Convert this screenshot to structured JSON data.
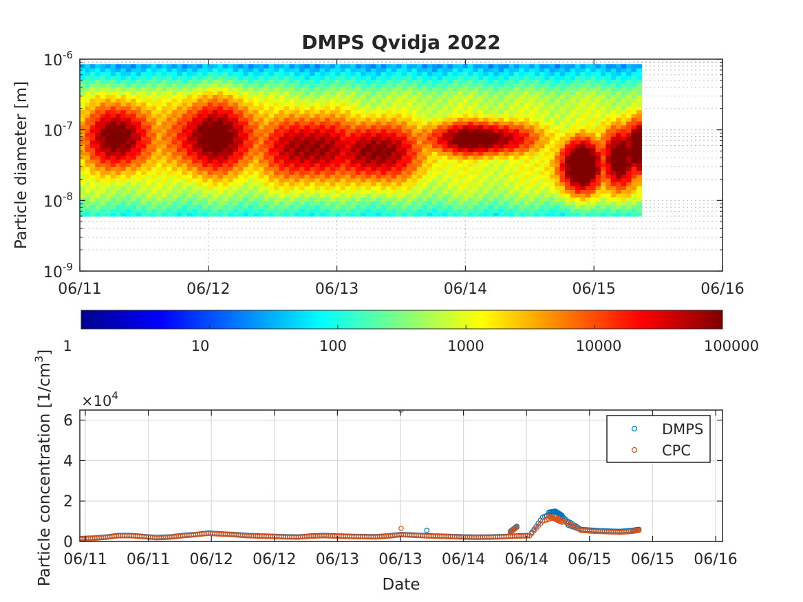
{
  "figure_title": "DMPS Qvidja 2022",
  "chart_data": [
    {
      "type": "heatmap",
      "title": "DMPS Qvidja 2022",
      "xlabel": "",
      "ylabel": "Particle diameter [m]",
      "x_tick_labels": [
        "06/11",
        "06/12",
        "06/13",
        "06/14",
        "06/15",
        "06/16"
      ],
      "x_range_days": [
        0,
        5
      ],
      "y_scale": "log",
      "y_range": [
        1e-09,
        1e-06
      ],
      "y_tick_labels": [
        {
          "base": "10",
          "exp": "-9"
        },
        {
          "base": "10",
          "exp": "-8"
        },
        {
          "base": "10",
          "exp": "-7"
        },
        {
          "base": "10",
          "exp": "-6"
        }
      ],
      "data_extent_days": [
        0,
        4.37
      ],
      "diameter_extent_m": [
        6e-09,
        8.5e-07
      ],
      "grid": "dotted",
      "colorscale": "jet",
      "peak_ranges": [
        {
          "from_day": 0.3,
          "to_day": 0.6,
          "center_m": 9e-08
        },
        {
          "from_day": 0.8,
          "to_day": 1.3,
          "center_m": 8e-08
        },
        {
          "from_day": 2.5,
          "to_day": 3.5,
          "center_m": 6e-08
        },
        {
          "from_day": 3.7,
          "to_day": 4.3,
          "center_m": 3e-08
        }
      ]
    },
    {
      "type": "colorbar",
      "scale": "log",
      "range": [
        1,
        100000
      ],
      "tick_labels": [
        "1",
        "10",
        "100",
        "1000",
        "10000",
        "100000"
      ],
      "label": "[1/cm",
      "label_sup": "3",
      "label_close": "]"
    },
    {
      "type": "scatter",
      "xlabel": "Date",
      "ylabel": "Particle concentration",
      "y_multiplier": "10",
      "y_multiplier_exp": "4",
      "y_multiplier_prefix": "×",
      "x_tick_labels": [
        "06/11",
        "06/11",
        "06/12",
        "06/12",
        "06/13",
        "06/13",
        "06/14",
        "06/14",
        "06/15",
        "06/15",
        "06/16"
      ],
      "y_tick_labels": [
        "0",
        "2",
        "4",
        "6"
      ],
      "ylim": [
        0,
        65000
      ],
      "x_range_days": [
        0,
        5
      ],
      "grid": true,
      "legend_position": "top-right",
      "series": [
        {
          "name": "DMPS",
          "color": "#0072BD",
          "x": [
            0.0,
            0.1,
            0.2,
            0.3,
            0.4,
            0.5,
            0.6,
            0.7,
            0.8,
            0.9,
            1.0,
            1.1,
            1.2,
            1.3,
            1.4,
            1.5,
            1.6,
            1.7,
            1.8,
            1.9,
            2.0,
            2.1,
            2.2,
            2.3,
            2.4,
            2.5,
            2.6,
            2.7,
            2.8,
            2.9,
            3.0,
            3.1,
            3.2,
            3.3,
            3.4,
            3.5,
            3.6,
            3.7,
            3.8,
            3.9,
            4.0,
            4.1,
            4.2,
            4.3,
            4.35,
            2.5,
            2.7,
            3.35,
            3.4,
            3.65,
            3.7,
            3.75,
            3.8,
            3.9
          ],
          "y": [
            1500,
            1700,
            2200,
            3000,
            3000,
            2500,
            2000,
            2300,
            3000,
            3500,
            4200,
            3800,
            3500,
            3000,
            2800,
            2600,
            2400,
            2300,
            2800,
            3000,
            2800,
            2600,
            2500,
            2400,
            2800,
            3500,
            3200,
            2900,
            2700,
            2500,
            2300,
            2200,
            2300,
            2500,
            2800,
            3000,
            12000,
            14500,
            10000,
            6000,
            5500,
            5200,
            5000,
            5500,
            6000,
            65000,
            5500,
            5000,
            7500,
            14500,
            15000,
            13000,
            8000,
            5800
          ]
        },
        {
          "name": "CPC",
          "color": "#D95319",
          "x": [
            0.0,
            0.1,
            0.2,
            0.3,
            0.4,
            0.5,
            0.6,
            0.7,
            0.8,
            0.9,
            1.0,
            1.1,
            1.2,
            1.3,
            1.4,
            1.5,
            1.6,
            1.7,
            1.8,
            1.9,
            2.0,
            2.1,
            2.2,
            2.3,
            2.4,
            2.5,
            2.6,
            2.7,
            2.8,
            2.9,
            3.0,
            3.1,
            3.2,
            3.3,
            3.4,
            3.5,
            3.6,
            3.7,
            3.8,
            3.9,
            4.0,
            4.1,
            4.2,
            4.3,
            4.35,
            2.5,
            3.35,
            3.4,
            3.65,
            3.7,
            3.75
          ],
          "y": [
            1300,
            1500,
            2000,
            2800,
            2800,
            2300,
            1800,
            2100,
            2800,
            3300,
            4000,
            3600,
            3300,
            2800,
            2600,
            2400,
            2200,
            2100,
            2600,
            2800,
            2600,
            2400,
            2300,
            2200,
            2600,
            3300,
            3000,
            2700,
            2500,
            2300,
            2100,
            2000,
            2100,
            2300,
            2600,
            2800,
            10000,
            12000,
            9000,
            5500,
            5000,
            4800,
            4500,
            5000,
            5500,
            6500,
            4500,
            7000,
            12500,
            11000,
            9500
          ]
        }
      ]
    }
  ]
}
